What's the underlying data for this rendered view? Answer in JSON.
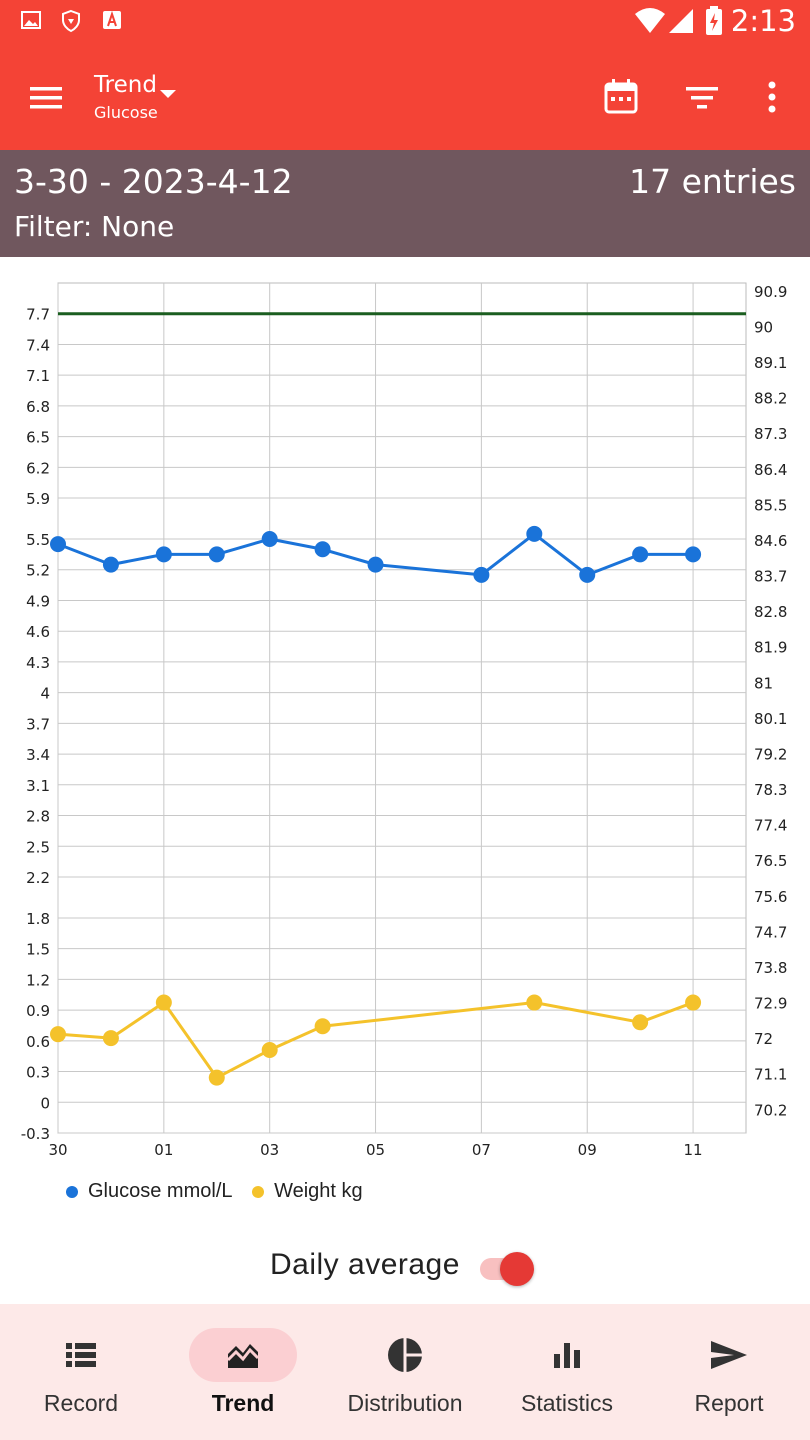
{
  "status_bar": {
    "time": "2:13",
    "left_icons": [
      "image-icon",
      "shield-icon",
      "font-icon"
    ],
    "right_icons": [
      "wifi-icon",
      "cellular-signal-icon",
      "battery-charging-icon"
    ]
  },
  "app_bar": {
    "title": "Trend",
    "subtitle": "Glucose",
    "icons": [
      "menu-icon",
      "dropdown-caret-icon",
      "calendar-icon",
      "filter-icon",
      "more-vert-icon"
    ]
  },
  "info_bar": {
    "date_range": "3-30 - 2023-4-12",
    "entries": "17 entries",
    "filter": "Filter: None"
  },
  "chart_data": {
    "type": "line",
    "x_tick_labels": [
      "30",
      "01",
      "03",
      "05",
      "07",
      "09",
      "11"
    ],
    "x_dates": [
      "03-30",
      "03-31",
      "04-01",
      "04-02",
      "04-03",
      "04-04",
      "04-05",
      "04-06",
      "04-07",
      "04-08",
      "04-09",
      "04-10",
      "04-11"
    ],
    "y_left": {
      "ticks": [
        "-0.3",
        "0",
        "0.3",
        "0.6",
        "0.9",
        "1.2",
        "1.5",
        "1.8",
        "2.2",
        "2.5",
        "2.8",
        "3.1",
        "3.4",
        "3.7",
        "4",
        "4.3",
        "4.6",
        "4.9",
        "5.2",
        "5.5",
        "5.9",
        "6.2",
        "6.5",
        "6.8",
        "7.1",
        "7.4",
        "7.7"
      ],
      "range": [
        -0.3,
        8.0
      ]
    },
    "y_right": {
      "ticks": [
        "70.2",
        "71.1",
        "72",
        "72.9",
        "73.8",
        "74.7",
        "75.6",
        "76.5",
        "77.4",
        "78.3",
        "79.2",
        "80.1",
        "81",
        "81.9",
        "82.8",
        "83.7",
        "84.6",
        "85.5",
        "86.4",
        "87.3",
        "88.2",
        "89.1",
        "90",
        "90.9"
      ],
      "range": [
        69.6,
        91.1
      ]
    },
    "target_line": {
      "value": 7.7,
      "color": "#1b5e20"
    },
    "series": [
      {
        "name": "Glucose mmol/L",
        "color": "#1a73d9",
        "axis": "left",
        "points": [
          {
            "x": "03-30",
            "y": 5.45
          },
          {
            "x": "03-31",
            "y": 5.25
          },
          {
            "x": "04-01",
            "y": 5.35
          },
          {
            "x": "04-02",
            "y": 5.35
          },
          {
            "x": "04-03",
            "y": 5.5
          },
          {
            "x": "04-04",
            "y": 5.4
          },
          {
            "x": "04-05",
            "y": 5.25
          },
          {
            "x": "04-07",
            "y": 5.15
          },
          {
            "x": "04-08",
            "y": 5.55
          },
          {
            "x": "04-09",
            "y": 5.15
          },
          {
            "x": "04-10",
            "y": 5.35
          },
          {
            "x": "04-11",
            "y": 5.35
          }
        ]
      },
      {
        "name": "Weight kg",
        "color": "#f4c22b",
        "axis": "right",
        "points": [
          {
            "x": "03-30",
            "y": 72.1
          },
          {
            "x": "03-31",
            "y": 72.0
          },
          {
            "x": "04-01",
            "y": 72.9
          },
          {
            "x": "04-02",
            "y": 71.0
          },
          {
            "x": "04-03",
            "y": 71.7
          },
          {
            "x": "04-04",
            "y": 72.3
          },
          {
            "x": "04-08",
            "y": 72.9
          },
          {
            "x": "04-10",
            "y": 72.4
          },
          {
            "x": "04-11",
            "y": 72.9
          }
        ]
      }
    ],
    "grid": true,
    "legend_position": "bottom-left"
  },
  "legend": {
    "glucose": "Glucose mmol/L",
    "weight": "Weight kg"
  },
  "daily_average": {
    "label": "Daily average",
    "enabled": true
  },
  "bottom_nav": {
    "items": [
      {
        "label": "Record",
        "icon": "list-icon",
        "active": false
      },
      {
        "label": "Trend",
        "icon": "trend-icon",
        "active": true
      },
      {
        "label": "Distribution",
        "icon": "pie-chart-icon",
        "active": false
      },
      {
        "label": "Statistics",
        "icon": "bar-chart-icon",
        "active": false
      },
      {
        "label": "Report",
        "icon": "send-icon",
        "active": false
      }
    ]
  },
  "colors": {
    "primary": "#f44336",
    "info_bar": "#70575e",
    "nav_background": "#fde9e8",
    "nav_active_pill": "#fbcfd2"
  }
}
